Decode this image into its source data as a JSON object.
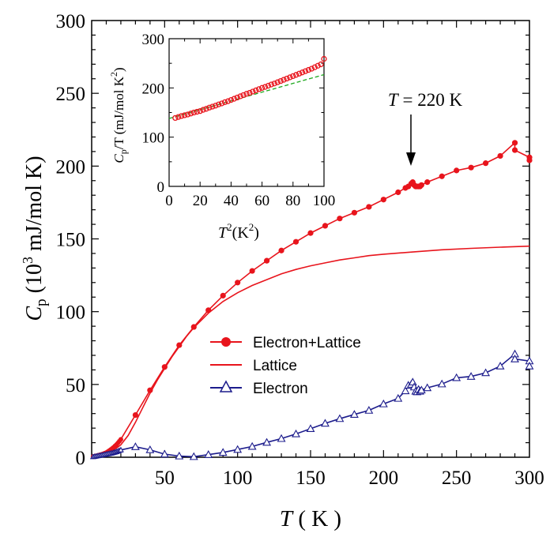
{
  "chart_data": {
    "type": "line",
    "xlabel": {
      "symbol": "T",
      "rest": " ( K )"
    },
    "ylabel": {
      "symbol": "C",
      "sub": "p",
      "open": " (10",
      "sup": "3",
      "rest": " mJ/mol K)"
    },
    "xlim": [
      0,
      300
    ],
    "ylim": [
      0,
      300
    ],
    "xticks": [
      "50",
      "100",
      "150",
      "200",
      "250",
      "300"
    ],
    "yticks": [
      "0",
      "50",
      "100",
      "150",
      "200",
      "250",
      "300"
    ],
    "annotation": {
      "symbol": "T",
      "rest": " = 220 K",
      "x": 220
    },
    "legend_position": "center-right",
    "colors": {
      "el_lattice": "#e8141c",
      "lattice": "#e8141c",
      "electron": "#1c1c8c"
    },
    "series": [
      {
        "name": "Electron+Lattice",
        "marker": "filled-circle",
        "x": [
          1,
          2,
          3,
          4,
          5,
          6,
          7,
          8,
          9,
          10,
          11,
          12,
          13,
          14,
          15,
          16,
          17,
          18,
          19,
          20,
          30,
          40,
          50,
          60,
          70,
          80,
          90,
          100,
          110,
          120,
          130,
          140,
          150,
          160,
          170,
          180,
          190,
          200,
          210,
          215,
          217,
          219,
          220,
          221,
          222,
          223,
          224,
          225,
          226,
          230,
          240,
          250,
          260,
          270,
          280,
          290,
          290,
          300,
          300
        ],
        "y": [
          0.4,
          0.7,
          0.9,
          1.1,
          1.4,
          1.7,
          2.0,
          2.4,
          2.8,
          3.2,
          3.8,
          4.5,
          5.2,
          6.0,
          6.8,
          7.7,
          8.7,
          9.8,
          11.0,
          12.3,
          29,
          46,
          62,
          77,
          89.5,
          101,
          111,
          120,
          128,
          135,
          142,
          148,
          154,
          159,
          164,
          168,
          172,
          177,
          182,
          185,
          186,
          188,
          189,
          187,
          186,
          186,
          186,
          186,
          187,
          189,
          193,
          197,
          199,
          202,
          207,
          216,
          211,
          206,
          204
        ]
      },
      {
        "name": "Lattice",
        "marker": "none",
        "x": [
          0,
          5,
          10,
          15,
          20,
          25,
          30,
          35,
          40,
          45,
          50,
          55,
          60,
          65,
          70,
          80,
          90,
          100,
          110,
          120,
          130,
          140,
          150,
          160,
          170,
          180,
          190,
          200,
          220,
          240,
          260,
          280,
          300
        ],
        "y": [
          0,
          0.6,
          2.2,
          4.8,
          8.5,
          15,
          24,
          34,
          44,
          53,
          61,
          69,
          76,
          83,
          89,
          99,
          107,
          113,
          118,
          122,
          126,
          129,
          131.5,
          133.5,
          135.5,
          137,
          138.5,
          139.5,
          141,
          142.5,
          143.5,
          144.3,
          145
        ]
      },
      {
        "name": "Electron",
        "marker": "open-triangle",
        "x": [
          1,
          2,
          3,
          4,
          5,
          6,
          7,
          8,
          9,
          10,
          11,
          12,
          13,
          14,
          15,
          16,
          17,
          18,
          19,
          20,
          30,
          40,
          50,
          60,
          70,
          80,
          90,
          100,
          110,
          120,
          130,
          140,
          150,
          160,
          170,
          180,
          190,
          200,
          210,
          215,
          217,
          219,
          220,
          221,
          222,
          223,
          224,
          225,
          226,
          230,
          240,
          250,
          260,
          270,
          280,
          290,
          290,
          300,
          300
        ],
        "y": [
          0.3,
          0.5,
          0.7,
          0.9,
          1.1,
          1.3,
          1.5,
          1.7,
          1.9,
          2.1,
          2.3,
          2.5,
          2.7,
          2.9,
          3.2,
          3.5,
          3.8,
          4.2,
          4.6,
          5.0,
          7.2,
          5.1,
          2.1,
          0.8,
          0.4,
          1.8,
          3.3,
          5.3,
          7.4,
          10.2,
          12.8,
          16.0,
          19.6,
          23.3,
          26.5,
          29.4,
          32.2,
          36.6,
          40.4,
          45.6,
          49.4,
          50.1,
          51.6,
          48.2,
          45.3,
          44.9,
          46.6,
          45.3,
          46.1,
          47.7,
          50.3,
          54.6,
          55.5,
          58.0,
          62.6,
          70.9,
          67.5,
          66.1,
          62.6
        ]
      }
    ],
    "inset": {
      "type": "scatter",
      "xlabel": {
        "symbol": "T",
        "sup1": "2",
        "rest": "(K",
        "sup2": "2",
        "close": ")"
      },
      "ylabel": {
        "symbol": "C",
        "sub": "p",
        "rest": "/T (mJ/mol K",
        "sup": "2",
        "close": ")"
      },
      "xlim": [
        0,
        100
      ],
      "ylim": [
        0,
        300
      ],
      "xticks": [
        "0",
        "20",
        "40",
        "60",
        "80",
        "100"
      ],
      "yticks": [
        "0",
        "100",
        "200",
        "300"
      ],
      "fit_line": {
        "style": "dashed",
        "color": "#1ca81c",
        "x": [
          0,
          100
        ],
        "y": [
          138,
          227
        ]
      },
      "points": {
        "color": "#e8141c",
        "marker": "open-circle",
        "x": [
          4,
          6,
          8,
          10,
          12,
          14,
          16,
          18,
          20,
          22,
          24,
          26,
          28,
          30,
          32,
          34,
          36,
          38,
          40,
          42,
          44,
          46,
          48,
          50,
          52,
          54,
          56,
          58,
          60,
          62,
          64,
          66,
          68,
          70,
          72,
          74,
          76,
          78,
          80,
          82,
          84,
          86,
          88,
          90,
          92,
          94,
          96,
          98,
          100
        ],
        "y": [
          139,
          141,
          143,
          144.5,
          146,
          148,
          150,
          151.5,
          153,
          155.5,
          157.5,
          160,
          162,
          164,
          166.5,
          168.5,
          171,
          173,
          175.5,
          178,
          180.5,
          183,
          185.5,
          188,
          190,
          192.5,
          195,
          197.5,
          200,
          202,
          204.5,
          207,
          209,
          211.5,
          214,
          216.5,
          219,
          221.5,
          224,
          226.5,
          229,
          231.5,
          234,
          236.5,
          239,
          242,
          245,
          248,
          259
        ]
      }
    }
  }
}
